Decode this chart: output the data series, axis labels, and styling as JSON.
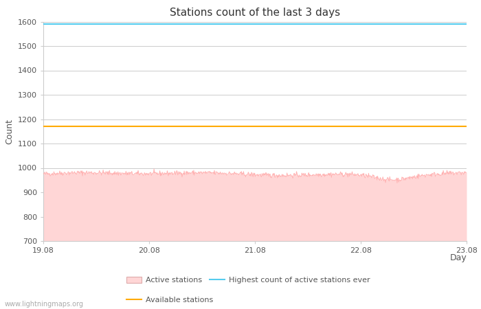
{
  "title": "Stations count of the last 3 days",
  "xlabel": "Day",
  "ylabel": "Count",
  "ylim": [
    700,
    1600
  ],
  "yticks": [
    700,
    800,
    900,
    1000,
    1100,
    1200,
    1300,
    1400,
    1500,
    1600
  ],
  "x_start": 0,
  "x_end": 4,
  "xtick_positions": [
    0,
    1,
    2,
    3,
    4
  ],
  "xtick_labels": [
    "19.08",
    "20.08",
    "21.08",
    "22.08",
    "23.08"
  ],
  "highest_ever_value": 1590,
  "available_stations_value": 1170,
  "active_stations_mean": 975,
  "active_fill_color": "#ffd6d6",
  "active_line_color": "#ffaaaa",
  "highest_line_color": "#55ccee",
  "available_line_color": "#ffaa00",
  "bg_color": "#ffffff",
  "plot_bg_color": "#ffffff",
  "grid_color": "#cccccc",
  "watermark": "www.lightningmaps.org",
  "legend_labels": [
    "Active stations",
    "Highest count of active stations ever",
    "Available stations"
  ],
  "title_fontsize": 11,
  "axis_label_fontsize": 9,
  "tick_fontsize": 8,
  "legend_fontsize": 8
}
